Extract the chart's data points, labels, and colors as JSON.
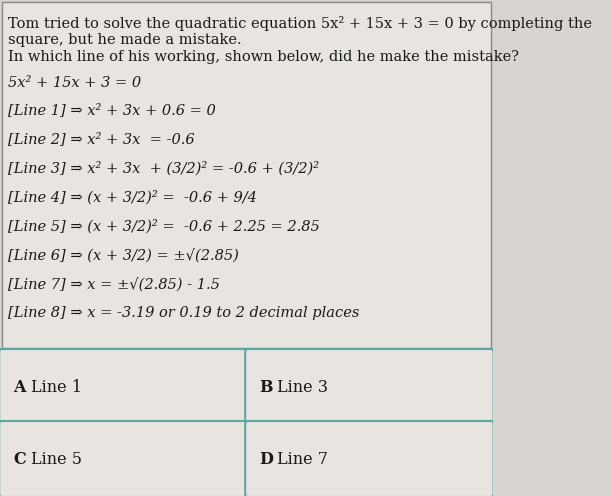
{
  "background_color": "#d8d4d0",
  "content_bg": "#e8e4e0",
  "title_line1": "Tom tried to solve the quadratic equation 5x² + 15x + 3 = 0 by completing the",
  "title_line2": "square, but he made a mistake.",
  "title_line3": "In which line of his working, shown below, did he make the mistake?",
  "equation": "5x² + 15x + 3 = 0",
  "lines": [
    "[Line 1] ⇒ x² + 3x + 0.6 = 0",
    "[Line 2] ⇒ x² + 3x  = -0.6",
    "[Line 3] ⇒ x² + 3x  + (3/2)² = -0.6 + (3/2)²",
    "[Line 4] ⇒ (x + 3/2)² =  -0.6 + 9/4",
    "[Line 5] ⇒ (x + 3/2)² =  -0.6 + 2.25 = 2.85",
    "[Line 6] ⇒ (x + 3/2) = ±√(2.85)",
    "[Line 7] ⇒ x = ±√(2.85) - 1.5",
    "[Line 8] ⇒ x = -3.19 or 0.19 to 2 decimal places"
  ],
  "answers": [
    {
      "label": "A",
      "text": "Line 1",
      "col": 0,
      "row": 0
    },
    {
      "label": "B",
      "text": "Line 3",
      "col": 1,
      "row": 0
    },
    {
      "label": "C",
      "text": "Line 5",
      "col": 0,
      "row": 1
    },
    {
      "label": "D",
      "text": "Line 7",
      "col": 1,
      "row": 1
    }
  ],
  "font_size_title": 10.5,
  "font_size_body": 10.5,
  "font_size_answer": 11.5,
  "text_color": "#1a1a1a",
  "answer_box_fill": "#e8e4df",
  "answer_box_edge": "#5ba8a0",
  "separator_color": "#7ab8b0",
  "top_box_edge": "#888888"
}
